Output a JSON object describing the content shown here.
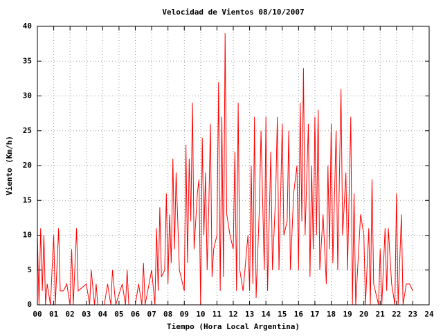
{
  "chart_data": {
    "type": "line",
    "title": "Velocidad de Vientos 08/10/2007",
    "xlabel": "Tiempo (Hora Local Argentina)",
    "ylabel": "Viento (Km/h)",
    "series": [
      {
        "name": "Viento",
        "color": "#ff0000",
        "x": [
          0.0,
          0.1,
          0.2,
          0.3,
          0.4,
          0.5,
          0.6,
          0.8,
          1.0,
          1.1,
          1.3,
          1.4,
          1.6,
          1.8,
          2.0,
          2.1,
          2.2,
          2.4,
          2.5,
          3.0,
          3.2,
          3.3,
          3.5,
          3.6,
          3.7,
          4.1,
          4.3,
          4.5,
          4.6,
          4.8,
          5.2,
          5.4,
          5.5,
          5.6,
          6.0,
          6.2,
          6.4,
          6.5,
          6.6,
          7.0,
          7.2,
          7.3,
          7.4,
          7.5,
          7.6,
          7.8,
          7.9,
          8.0,
          8.1,
          8.2,
          8.3,
          8.4,
          8.5,
          8.7,
          9.0,
          9.1,
          9.2,
          9.3,
          9.4,
          9.5,
          9.6,
          9.8,
          9.9,
          10.0,
          10.1,
          10.2,
          10.3,
          10.4,
          10.5,
          10.6,
          10.7,
          10.8,
          11.0,
          11.1,
          11.2,
          11.3,
          11.4,
          11.5,
          11.6,
          11.8,
          12.0,
          12.1,
          12.2,
          12.3,
          12.4,
          12.6,
          12.9,
          13.0,
          13.1,
          13.2,
          13.3,
          13.4,
          13.6,
          13.7,
          13.9,
          14.0,
          14.1,
          14.3,
          14.4,
          14.6,
          14.7,
          14.8,
          15.0,
          15.1,
          15.3,
          15.4,
          15.5,
          15.7,
          15.9,
          16.0,
          16.1,
          16.2,
          16.3,
          16.4,
          16.6,
          16.7,
          16.8,
          16.9,
          17.0,
          17.1,
          17.2,
          17.3,
          17.5,
          17.7,
          17.8,
          17.9,
          18.0,
          18.1,
          18.3,
          18.4,
          18.6,
          18.7,
          18.9,
          19.0,
          19.2,
          19.3,
          19.4,
          19.5,
          19.8,
          20.0,
          20.1,
          20.3,
          20.4,
          20.5,
          20.6,
          20.9,
          21.0,
          21.1,
          21.3,
          21.4,
          21.5,
          21.7,
          21.9,
          22.0,
          22.1,
          22.3,
          22.4,
          22.6,
          22.8,
          23.0
        ],
        "values": [
          10,
          0,
          11,
          2,
          10,
          0,
          3,
          0,
          10,
          0,
          11,
          2,
          2,
          3,
          0,
          8,
          0,
          11,
          2,
          3,
          0,
          5,
          0,
          3,
          0,
          0,
          3,
          0,
          5,
          0,
          3,
          0,
          5,
          0,
          0,
          3,
          0,
          6,
          0,
          5,
          0,
          11,
          2,
          14,
          4,
          5,
          16,
          3,
          13,
          6,
          21,
          8,
          19,
          5,
          2,
          23,
          6,
          21,
          12,
          29,
          8,
          16,
          18,
          0,
          24,
          10,
          19,
          5,
          14,
          26,
          4,
          8,
          10,
          32,
          2,
          27,
          4,
          39,
          13,
          10,
          8,
          22,
          2,
          29,
          5,
          2,
          10,
          2,
          20,
          3,
          27,
          1,
          14,
          25,
          5,
          27,
          2,
          22,
          5,
          16,
          27,
          5,
          26,
          10,
          12,
          25,
          5,
          16,
          20,
          5,
          29,
          12,
          34,
          10,
          26,
          4,
          20,
          8,
          27,
          10,
          28,
          5,
          13,
          3,
          20,
          8,
          26,
          6,
          25,
          5,
          31,
          10,
          19,
          5,
          27,
          0,
          16,
          0,
          13,
          10,
          0,
          11,
          0,
          18,
          3,
          0,
          8,
          0,
          11,
          2,
          11,
          3,
          0,
          16,
          0,
          13,
          0,
          3,
          3,
          2
        ]
      }
    ],
    "xlim": [
      0,
      24
    ],
    "xticks": [
      {
        "value": 0,
        "label": "00"
      },
      {
        "value": 1,
        "label": "01"
      },
      {
        "value": 2,
        "label": "02"
      },
      {
        "value": 3,
        "label": "03"
      },
      {
        "value": 4,
        "label": "04"
      },
      {
        "value": 5,
        "label": "05"
      },
      {
        "value": 6,
        "label": "06"
      },
      {
        "value": 7,
        "label": "07"
      },
      {
        "value": 8,
        "label": "08"
      },
      {
        "value": 9,
        "label": "09"
      },
      10,
      11,
      12,
      13,
      14,
      15,
      16,
      17,
      18,
      19,
      20,
      21,
      22,
      23,
      24
    ],
    "ylim": [
      0,
      40
    ],
    "yticks": [
      0,
      5,
      10,
      15,
      20,
      25,
      30,
      35,
      40
    ],
    "grid": true
  }
}
